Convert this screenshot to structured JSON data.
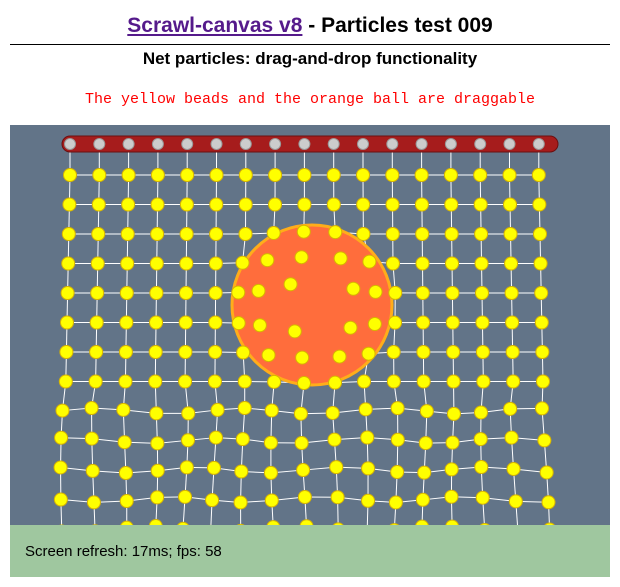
{
  "header": {
    "link_label": "Scrawl-canvas v8",
    "title_suffix": " - Particles test 009"
  },
  "subtitle": "Net particles: drag-and-drop functionality",
  "note": "The yellow beads and the orange ball are draggable",
  "status": {
    "text": "Screen refresh: 17ms; fps: 58"
  },
  "colors": {
    "canvas_bg": "#627488",
    "bead": "#ffff00",
    "bead_stroke": "#d8b400",
    "strand": "#ffffff",
    "ball": "#ff6d3c",
    "ball_stroke": "#ffad1a",
    "anchor_bar": "#a61c1c",
    "anchor_pin": "#cccccc",
    "status_bg": "#9fc79f"
  }
}
